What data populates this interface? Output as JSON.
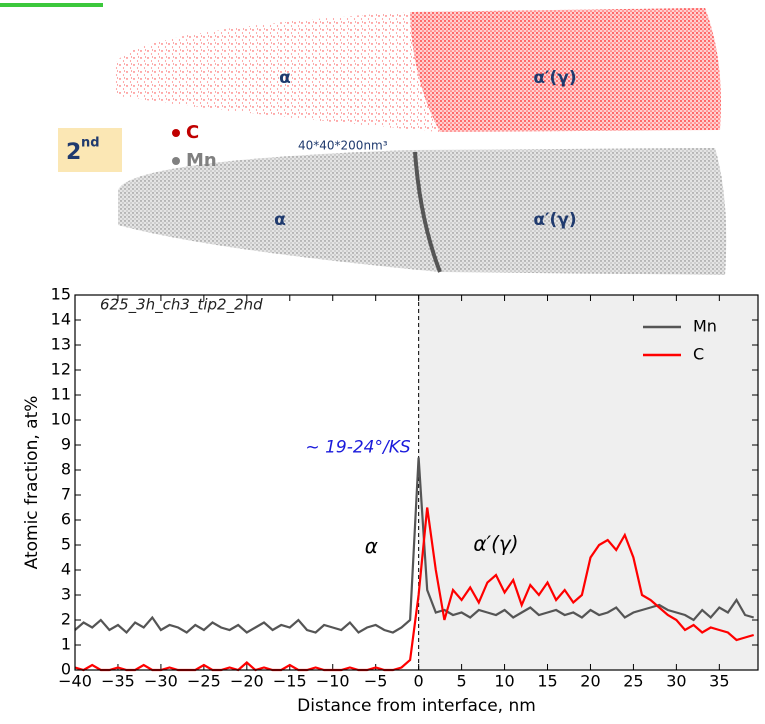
{
  "maps": {
    "badge": {
      "main": "2",
      "sup": "nd"
    },
    "legend": [
      {
        "name": "C",
        "color": "#c00000"
      },
      {
        "name": "Mn",
        "color": "#808080"
      }
    ],
    "dimensions": "40*40*200nm³",
    "phase_labels": [
      "α",
      "α′(γ)",
      "α",
      "α′(γ)"
    ]
  },
  "chart_data": {
    "type": "line",
    "xlabel": "Distance from interface, nm",
    "ylabel": "Atomic fraction, at%",
    "x": [
      -40,
      -39,
      -38,
      -37,
      -36,
      -35,
      -34,
      -33,
      -32,
      -31,
      -30,
      -29,
      -28,
      -27,
      -26,
      -25,
      -24,
      -23,
      -22,
      -21,
      -20,
      -19,
      -18,
      -17,
      -16,
      -15,
      -14,
      -13,
      -12,
      -11,
      -10,
      -9,
      -8,
      -7,
      -6,
      -5,
      -4,
      -3,
      -2,
      -1,
      0,
      1,
      2,
      3,
      4,
      5,
      6,
      7,
      8,
      9,
      10,
      11,
      12,
      13,
      14,
      15,
      16,
      17,
      18,
      19,
      20,
      21,
      22,
      23,
      24,
      25,
      26,
      27,
      28,
      29,
      30,
      31,
      32,
      33,
      34,
      35,
      36,
      37,
      38,
      39
    ],
    "series": [
      {
        "name": "Mn",
        "color": "#555555",
        "values": [
          1.6,
          1.9,
          1.7,
          2.0,
          1.6,
          1.8,
          1.5,
          1.9,
          1.7,
          2.1,
          1.6,
          1.8,
          1.7,
          1.5,
          1.8,
          1.6,
          1.9,
          1.7,
          1.6,
          1.8,
          1.5,
          1.7,
          1.9,
          1.6,
          1.8,
          1.7,
          2.0,
          1.6,
          1.5,
          1.8,
          1.7,
          1.6,
          1.9,
          1.5,
          1.7,
          1.8,
          1.6,
          1.5,
          1.7,
          2.0,
          8.5,
          3.2,
          2.3,
          2.4,
          2.2,
          2.3,
          2.1,
          2.4,
          2.3,
          2.2,
          2.4,
          2.1,
          2.3,
          2.5,
          2.2,
          2.3,
          2.4,
          2.2,
          2.3,
          2.1,
          2.4,
          2.2,
          2.3,
          2.5,
          2.1,
          2.3,
          2.4,
          2.5,
          2.6,
          2.4,
          2.3,
          2.2,
          2.0,
          2.4,
          2.1,
          2.5,
          2.3,
          2.8,
          2.2,
          2.1
        ]
      },
      {
        "name": "C",
        "color": "#ff0000",
        "values": [
          0.1,
          0,
          0.2,
          0,
          0,
          0.1,
          0,
          0,
          0.2,
          0,
          0,
          0.1,
          0,
          0,
          0,
          0.2,
          0,
          0,
          0.1,
          0,
          0.3,
          0,
          0.1,
          0,
          0,
          0.2,
          0,
          0,
          0.1,
          0,
          0,
          0,
          0.1,
          0,
          0,
          0.1,
          0,
          0,
          0.1,
          0.4,
          3.0,
          6.5,
          4.0,
          2.0,
          3.2,
          2.8,
          3.3,
          2.7,
          3.5,
          3.8,
          3.1,
          3.6,
          2.6,
          3.4,
          3.0,
          3.5,
          2.8,
          3.2,
          2.7,
          3.0,
          4.5,
          5.0,
          5.2,
          4.8,
          5.4,
          4.5,
          3.0,
          2.8,
          2.5,
          2.2,
          2.0,
          1.6,
          1.8,
          1.5,
          1.7,
          1.6,
          1.5,
          1.2,
          1.3,
          1.4
        ]
      }
    ],
    "xlim": [
      -40,
      39.5
    ],
    "ylim": [
      0,
      15
    ],
    "xticks": [
      {
        "value": -40,
        "label": "−40"
      },
      {
        "value": -35,
        "label": "−35"
      },
      {
        "value": -30,
        "label": "−30"
      },
      {
        "value": -25,
        "label": "−25"
      },
      {
        "value": -20,
        "label": "−20"
      },
      {
        "value": -15,
        "label": "−15"
      },
      {
        "value": -10,
        "label": "−10"
      },
      {
        "value": -5,
        "label": "−5"
      },
      0,
      5,
      10,
      15,
      20,
      25,
      30,
      35
    ],
    "yticks": [
      0,
      1,
      2,
      3,
      4,
      5,
      6,
      7,
      8,
      9,
      10,
      11,
      12,
      13,
      14,
      15
    ],
    "interface_x": 0,
    "legend": "upper right",
    "annotations": [
      {
        "text": "625_3h_ch3_tip2_2nd",
        "color": "#222222"
      },
      {
        "text": "~ 19-24°/KS",
        "color": "#1a1adb"
      },
      {
        "text": "α",
        "color": "#000000"
      },
      {
        "text": "α′(γ)",
        "color": "#000000"
      }
    ]
  }
}
